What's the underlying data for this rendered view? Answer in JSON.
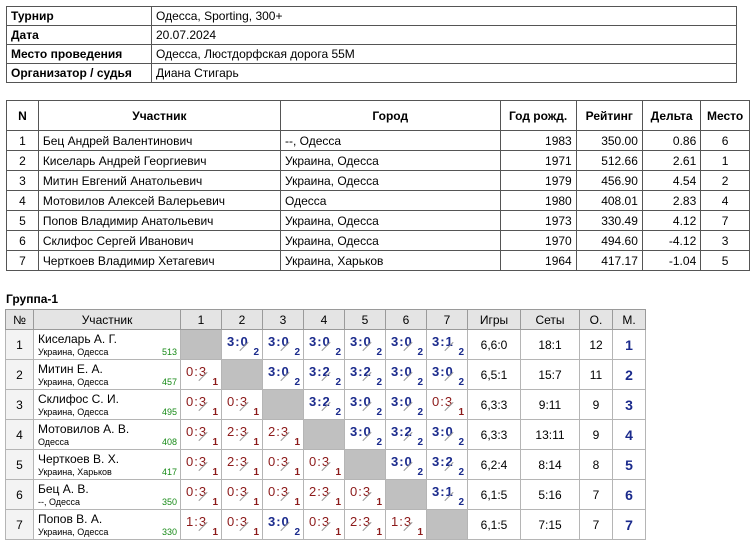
{
  "info": [
    {
      "k": "Турнир",
      "v": "Одесса, Sporting, 300+"
    },
    {
      "k": "Дата",
      "v": "20.07.2024"
    },
    {
      "k": "Место проведения",
      "v": "Одесса, Люстдорфская дорога 55М"
    },
    {
      "k": "Организатор / судья",
      "v": "Диана Стигарь"
    }
  ],
  "participants": {
    "headers": [
      "N",
      "Участник",
      "Город",
      "Год рожд.",
      "Рейтинг",
      "Дельта",
      "Место"
    ],
    "rows": [
      [
        "1",
        "Бец Андрей Валентинович",
        "--, Одесса",
        "1983",
        "350.00",
        "0.86",
        "6"
      ],
      [
        "2",
        "Киселарь Андрей Георгиевич",
        "Украина, Одесса",
        "1971",
        "512.66",
        "2.61",
        "1"
      ],
      [
        "3",
        "Митин Евгений Анатольевич",
        "Украина, Одесса",
        "1979",
        "456.90",
        "4.54",
        "2"
      ],
      [
        "4",
        "Мотовилов Алексей Валерьевич",
        "Одесса",
        "1980",
        "408.01",
        "2.83",
        "4"
      ],
      [
        "5",
        "Попов Владимир Анатольевич",
        "Украина, Одесса",
        "1973",
        "330.49",
        "4.12",
        "7"
      ],
      [
        "6",
        "Склифос Сергей Иванович",
        "Украина, Одесса",
        "1970",
        "494.60",
        "-4.12",
        "3"
      ],
      [
        "7",
        "Черткоев Владимир Хетагевич",
        "Украина, Харьков",
        "1964",
        "417.17",
        "-1.04",
        "5"
      ]
    ]
  },
  "group": {
    "title": "Группа-1",
    "headers": [
      "№",
      "Участник",
      "1",
      "2",
      "3",
      "4",
      "5",
      "6",
      "7",
      "Игры",
      "Сеты",
      "О.",
      "М."
    ],
    "rows": [
      {
        "n": "1",
        "name": "Киселарь А. Г.",
        "city": "Украина, Одесса",
        "rating": "513",
        "cells": [
          "",
          "3:0|2",
          "3:0|2",
          "3:0|2",
          "3:0|2",
          "3:0|2",
          "3:1|2"
        ],
        "games": "6,6:0",
        "sets": "18:1",
        "points": "12",
        "place": "1"
      },
      {
        "n": "2",
        "name": "Митин Е. А.",
        "city": "Украина, Одесса",
        "rating": "457",
        "cells": [
          "0:3|1",
          "",
          "3:0|2",
          "3:2|2",
          "3:2|2",
          "3:0|2",
          "3:0|2"
        ],
        "games": "6,5:1",
        "sets": "15:7",
        "points": "11",
        "place": "2"
      },
      {
        "n": "3",
        "name": "Склифос С. И.",
        "city": "Украина, Одесса",
        "rating": "495",
        "cells": [
          "0:3|1",
          "0:3|1",
          "",
          "3:2|2",
          "3:0|2",
          "3:0|2",
          "0:3|1"
        ],
        "games": "6,3:3",
        "sets": "9:11",
        "points": "9",
        "place": "3"
      },
      {
        "n": "4",
        "name": "Мотовилов А. В.",
        "city": "Одесса",
        "rating": "408",
        "cells": [
          "0:3|1",
          "2:3|1",
          "2:3|1",
          "",
          "3:0|2",
          "3:2|2",
          "3:0|2"
        ],
        "games": "6,3:3",
        "sets": "13:11",
        "points": "9",
        "place": "4"
      },
      {
        "n": "5",
        "name": "Черткоев В. Х.",
        "city": "Украина, Харьков",
        "rating": "417",
        "cells": [
          "0:3|1",
          "2:3|1",
          "0:3|1",
          "0:3|1",
          "",
          "3:0|2",
          "3:2|2"
        ],
        "games": "6,2:4",
        "sets": "8:14",
        "points": "8",
        "place": "5"
      },
      {
        "n": "6",
        "name": "Бец А. В.",
        "city": "--, Одесса",
        "rating": "350",
        "cells": [
          "0:3|1",
          "0:3|1",
          "0:3|1",
          "2:3|1",
          "0:3|1",
          "",
          "3:1|2"
        ],
        "games": "6,1:5",
        "sets": "5:16",
        "points": "7",
        "place": "6"
      },
      {
        "n": "7",
        "name": "Попов В. А.",
        "city": "Украина, Одесса",
        "rating": "330",
        "cells": [
          "1:3|1",
          "0:3|1",
          "3:0|2",
          "0:3|1",
          "2:3|1",
          "1:3|1",
          ""
        ],
        "games": "6,1:5",
        "sets": "7:15",
        "points": "7",
        "place": "7"
      }
    ]
  }
}
